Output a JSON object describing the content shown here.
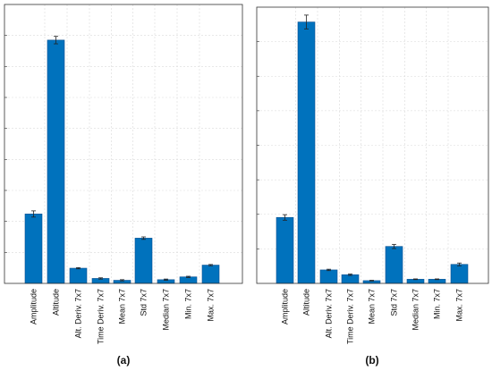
{
  "chart_data": [
    {
      "type": "bar",
      "panel_label": "(a)",
      "categories": [
        "Amplitude",
        "Altitude",
        "Alt. Deriv. 7x7",
        "Time Deriv. 7x7",
        "Mean 7x7",
        "Std 7x7",
        "Median 7x7",
        "Min. 7x7",
        "Max. 7x7"
      ],
      "values": [
        0.224,
        0.785,
        0.049,
        0.016,
        0.01,
        0.146,
        0.012,
        0.021,
        0.059
      ],
      "errors": [
        0.01,
        0.012,
        0.002,
        0.002,
        0.002,
        0.004,
        0.002,
        0.002,
        0.002
      ],
      "ylim": [
        0,
        0.9
      ],
      "grid": true,
      "color": "#0072bd",
      "title": "",
      "xlabel": "",
      "ylabel": ""
    },
    {
      "type": "bar",
      "panel_label": "(b)",
      "categories": [
        "Amplitude",
        "Altitude",
        "Alt. Deriv. 7x7",
        "Time Deriv. 7x7",
        "Mean 7x7",
        "Std 7x7",
        "Median 7x7",
        "Min. 7x7",
        "Max. 7x7"
      ],
      "values": [
        0.191,
        0.757,
        0.039,
        0.025,
        0.008,
        0.107,
        0.012,
        0.012,
        0.055
      ],
      "errors": [
        0.008,
        0.02,
        0.002,
        0.002,
        0.001,
        0.006,
        0.001,
        0.001,
        0.004
      ],
      "ylim": [
        0,
        0.8
      ],
      "grid": true,
      "color": "#0072bd",
      "title": "",
      "xlabel": "",
      "ylabel": ""
    }
  ]
}
